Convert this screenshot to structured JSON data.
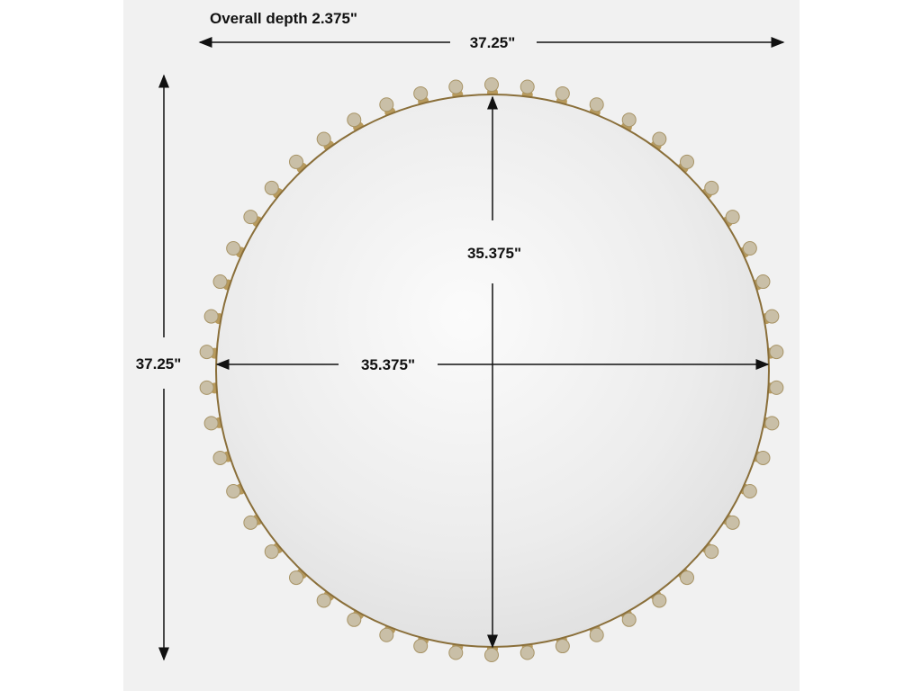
{
  "title": "Overall depth 2.375\"",
  "dimensions": {
    "overall_width": "37.25\"",
    "overall_height": "37.25\"",
    "mirror_width": "35.375\"",
    "mirror_height": "35.375\""
  },
  "colors": {
    "background": "#f1f1f1",
    "frame": "#8a6f3a",
    "knob": "#c9bfa7",
    "arrow": "#111111"
  }
}
